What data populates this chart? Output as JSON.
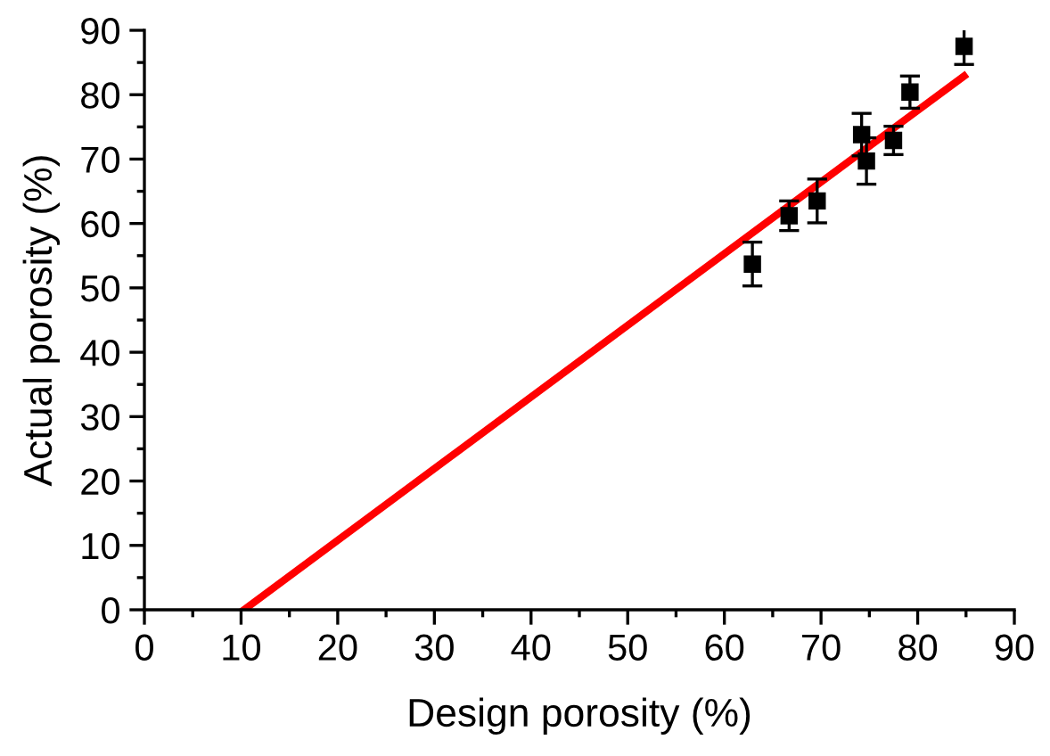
{
  "chart_data": {
    "type": "scatter",
    "xlabel": "Design porosity (%)",
    "ylabel": "Actual porosity (%)",
    "xlim": [
      0,
      90
    ],
    "ylim": [
      0,
      90
    ],
    "xticks": [
      0,
      10,
      20,
      30,
      40,
      50,
      60,
      70,
      80,
      90
    ],
    "yticks": [
      0,
      10,
      20,
      30,
      40,
      50,
      60,
      70,
      80,
      90
    ],
    "grid": false,
    "legend": false,
    "marker": "square",
    "series": [
      {
        "color": "#000000",
        "x": [
          62.9,
          66.7,
          69.6,
          74.2,
          74.7,
          77.5,
          79.2,
          84.8
        ],
        "values": [
          53.7,
          61.2,
          63.5,
          73.8,
          69.7,
          72.9,
          80.4,
          87.5
        ],
        "errors": [
          3.4,
          2.3,
          3.4,
          3.3,
          3.6,
          2.2,
          2.5,
          2.8
        ]
      },
      {
        "type": "line",
        "color": "#ff0000",
        "line_style": "solid",
        "marker": "none",
        "x": [
          10.3,
          84.8
        ],
        "values": [
          0,
          82.9
        ]
      }
    ]
  }
}
